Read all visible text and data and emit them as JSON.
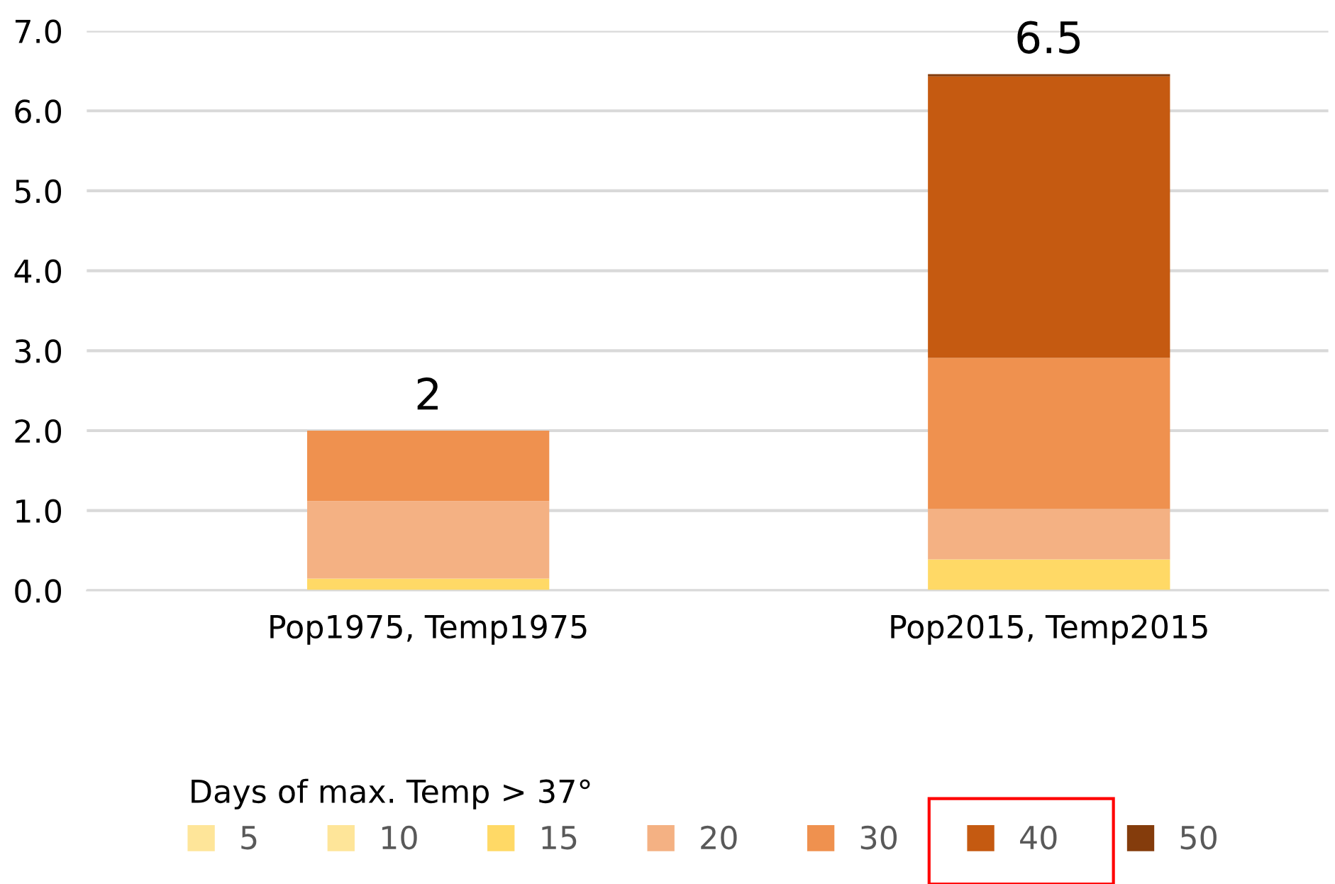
{
  "chart_data": {
    "type": "bar",
    "stacked": true,
    "categories": [
      "Pop1975, Temp1975",
      "Pop2015, Temp2015"
    ],
    "series": [
      {
        "name": "5",
        "color": "#fee599",
        "values": [
          0,
          0
        ]
      },
      {
        "name": "10",
        "color": "#fee599",
        "values": [
          0,
          0
        ]
      },
      {
        "name": "15",
        "color": "#ffd966",
        "values": [
          0.15,
          0.39
        ]
      },
      {
        "name": "20",
        "color": "#f4b183",
        "values": [
          0.97,
          0.63
        ]
      },
      {
        "name": "30",
        "color": "#ef914f",
        "values": [
          0.88,
          1.89
        ]
      },
      {
        "name": "40",
        "color": "#c55a11",
        "values": [
          0,
          3.52
        ]
      },
      {
        "name": "50",
        "color": "#843c0c",
        "values": [
          0,
          0.03
        ]
      }
    ],
    "totals": [
      "2",
      "6.5"
    ],
    "legend_title": "Days of max. Temp > 37°",
    "legend": "bottom",
    "grid": "y",
    "ylim": [
      0,
      7
    ],
    "yticks": [
      {
        "value": 0,
        "label": "0.0"
      },
      {
        "value": 1,
        "label": "1.0"
      },
      {
        "value": 2,
        "label": "2.0"
      },
      {
        "value": 3,
        "label": "3.0"
      },
      {
        "value": 4,
        "label": "4.0"
      },
      {
        "value": 5,
        "label": "5.0"
      },
      {
        "value": 6,
        "label": "6.0"
      },
      {
        "value": 7,
        "label": "7.0"
      }
    ]
  }
}
